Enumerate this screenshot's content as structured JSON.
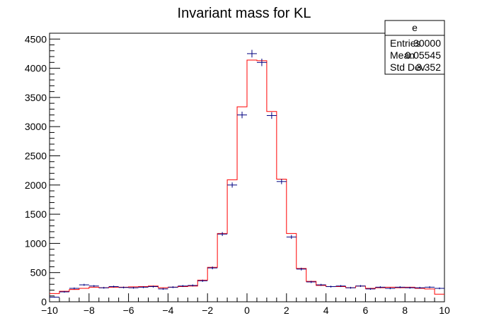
{
  "chart_data": {
    "type": "histogram",
    "title": "Invariant mass for KL",
    "xlabel": "",
    "ylabel": "",
    "xlim": [
      -10,
      10
    ],
    "ylim": [
      0,
      4600
    ],
    "x_ticks": [
      -10,
      -8,
      -6,
      -4,
      -2,
      0,
      2,
      4,
      6,
      8,
      10
    ],
    "y_ticks": [
      0,
      500,
      1000,
      1500,
      2000,
      2500,
      3000,
      3500,
      4000,
      4500
    ],
    "bin_edges": [
      -10,
      -9.5,
      -9,
      -8.5,
      -8,
      -7.5,
      -7,
      -6.5,
      -6,
      -5.5,
      -5,
      -4.5,
      -4,
      -3.5,
      -3,
      -2.5,
      -2,
      -1.5,
      -1,
      -0.5,
      0,
      0.5,
      1,
      1.5,
      2,
      2.5,
      3,
      3.5,
      4,
      4.5,
      5,
      5.5,
      6,
      6.5,
      7,
      7.5,
      8,
      8.5,
      9,
      9.5,
      10
    ],
    "series": [
      {
        "style": "points-with-errors",
        "color": "#000080",
        "bin_centers": [
          -9.75,
          -9.25,
          -8.75,
          -8.25,
          -7.75,
          -7.25,
          -6.75,
          -6.25,
          -5.75,
          -5.25,
          -4.75,
          -4.25,
          -3.75,
          -3.25,
          -2.75,
          -2.25,
          -1.75,
          -1.25,
          -0.75,
          -0.25,
          0.25,
          0.75,
          1.25,
          1.75,
          2.25,
          2.75,
          3.25,
          3.75,
          4.25,
          4.75,
          5.25,
          5.75,
          6.25,
          6.75,
          7.25,
          7.75,
          8.25,
          8.75,
          9.25,
          9.75
        ],
        "values": [
          80,
          170,
          230,
          290,
          270,
          240,
          260,
          245,
          240,
          250,
          260,
          220,
          250,
          270,
          280,
          360,
          580,
          1160,
          2000,
          3200,
          4250,
          4100,
          3190,
          2060,
          1110,
          560,
          340,
          290,
          260,
          270,
          240,
          270,
          220,
          250,
          230,
          250,
          240,
          240,
          250,
          230
        ]
      },
      {
        "style": "step",
        "color": "#ff0000",
        "values": [
          140,
          180,
          210,
          230,
          250,
          240,
          250,
          250,
          255,
          260,
          270,
          240,
          250,
          260,
          270,
          370,
          590,
          1170,
          2090,
          3340,
          4140,
          4130,
          3260,
          2100,
          1170,
          570,
          350,
          280,
          260,
          260,
          240,
          270,
          230,
          240,
          250,
          240,
          250,
          230,
          220,
          130
        ]
      }
    ],
    "stats_box": {
      "title": "e",
      "rows": [
        {
          "label": "Entries",
          "value": "30000"
        },
        {
          "label": "Mean",
          "value": "0.05545"
        },
        {
          "label": "Std Dev",
          "value": "3.352"
        }
      ]
    }
  }
}
